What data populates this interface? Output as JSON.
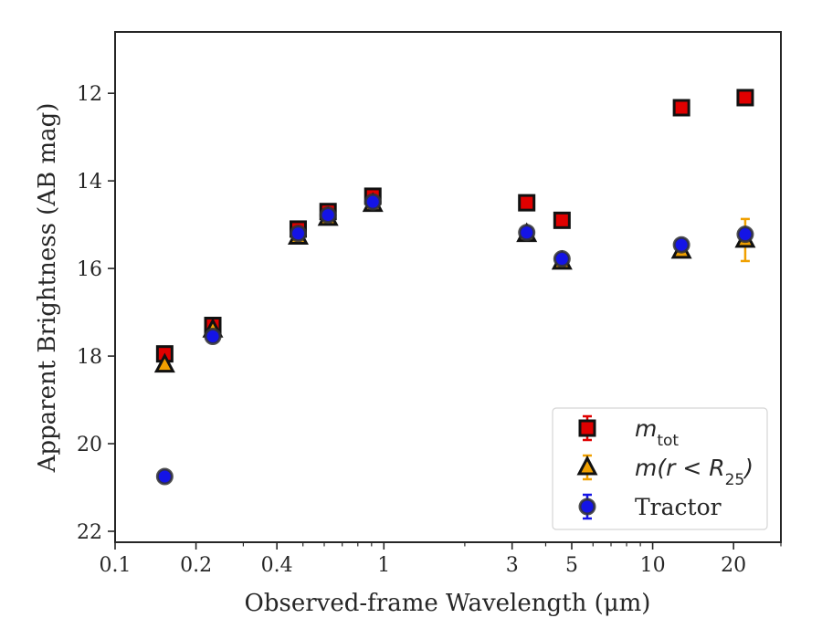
{
  "chart_data": {
    "type": "scatter",
    "xlabel": "Observed-frame Wavelength (μm)",
    "ylabel": "Apparent Brightness (AB mag)",
    "xscale": "log",
    "xlim": [
      0.1,
      30
    ],
    "ylim": [
      22.25,
      10.6
    ],
    "y_inverted": true,
    "xticks": [
      0.1,
      0.2,
      0.4,
      1,
      3,
      5,
      10,
      20
    ],
    "xtick_labels": [
      "0.1",
      "0.2",
      "0.4",
      "1",
      "3",
      "5",
      "10",
      "20"
    ],
    "yticks": [
      12,
      14,
      16,
      18,
      20,
      22
    ],
    "ytick_labels": [
      "12",
      "14",
      "16",
      "18",
      "20",
      "22"
    ],
    "grid": false,
    "legend_position": "lower-right",
    "series": [
      {
        "name": "m_tot",
        "label_main": "m",
        "label_sub": "tot",
        "marker": "square",
        "color": "#e00000",
        "x": [
          0.153,
          0.231,
          0.48,
          0.62,
          0.91,
          3.4,
          4.6,
          12.8,
          22.1
        ],
        "y": [
          17.95,
          17.3,
          15.1,
          14.7,
          14.35,
          14.5,
          14.9,
          12.33,
          12.1
        ],
        "yerr": [
          0.05,
          0.05,
          0.03,
          0.03,
          0.03,
          0.03,
          0.03,
          0.03,
          0.03
        ]
      },
      {
        "name": "m(r < R25)",
        "label_main": "m(r < R",
        "label_sub": "25",
        "label_tail": ")",
        "marker": "triangle",
        "color": "#f0a000",
        "x": [
          0.153,
          0.231,
          0.48,
          0.62,
          0.91,
          3.4,
          4.6,
          12.8,
          22.1
        ],
        "y": [
          18.2,
          17.4,
          15.28,
          14.85,
          14.53,
          15.22,
          15.85,
          15.6,
          15.35
        ],
        "yerr": [
          0.05,
          0.05,
          0.03,
          0.03,
          0.03,
          0.04,
          0.04,
          0.06,
          0.48
        ]
      },
      {
        "name": "Tractor",
        "marker": "circle",
        "color": "#1414e6",
        "x": [
          0.153,
          0.231,
          0.48,
          0.62,
          0.91,
          3.4,
          4.6,
          12.8,
          22.1
        ],
        "y": [
          20.75,
          17.55,
          15.2,
          14.78,
          14.48,
          15.18,
          15.78,
          15.46,
          15.22
        ],
        "yerr": [
          0.05,
          0.05,
          0.03,
          0.03,
          0.03,
          0.03,
          0.03,
          0.03,
          0.08
        ]
      }
    ]
  }
}
